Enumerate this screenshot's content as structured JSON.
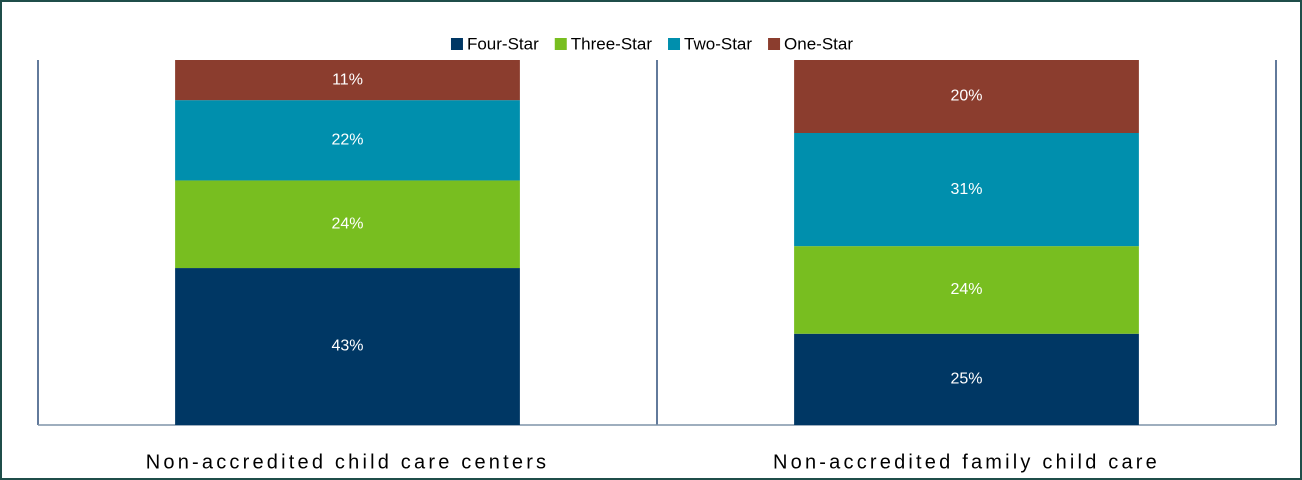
{
  "chart_data": {
    "type": "stacked_bar",
    "categories": [
      "Non-accredited child care centers",
      "Non-accredited family child care"
    ],
    "series": [
      {
        "name": "Four-Star",
        "color": "#003764",
        "values": [
          43,
          25
        ],
        "value_labels": [
          "43%",
          "25%"
        ]
      },
      {
        "name": "Three-Star",
        "color": "#78be20",
        "values": [
          24,
          24
        ],
        "value_labels": [
          "24%",
          "24%"
        ]
      },
      {
        "name": "Two-Star",
        "color": "#008fad",
        "values": [
          22,
          31
        ],
        "value_labels": [
          "22%",
          "31%"
        ]
      },
      {
        "name": "One-Star",
        "color": "#8b3d2e",
        "values": [
          11,
          20
        ],
        "value_labels": [
          "11%",
          "20%"
        ]
      }
    ],
    "ylim": [
      0,
      100
    ],
    "legend": "top"
  }
}
